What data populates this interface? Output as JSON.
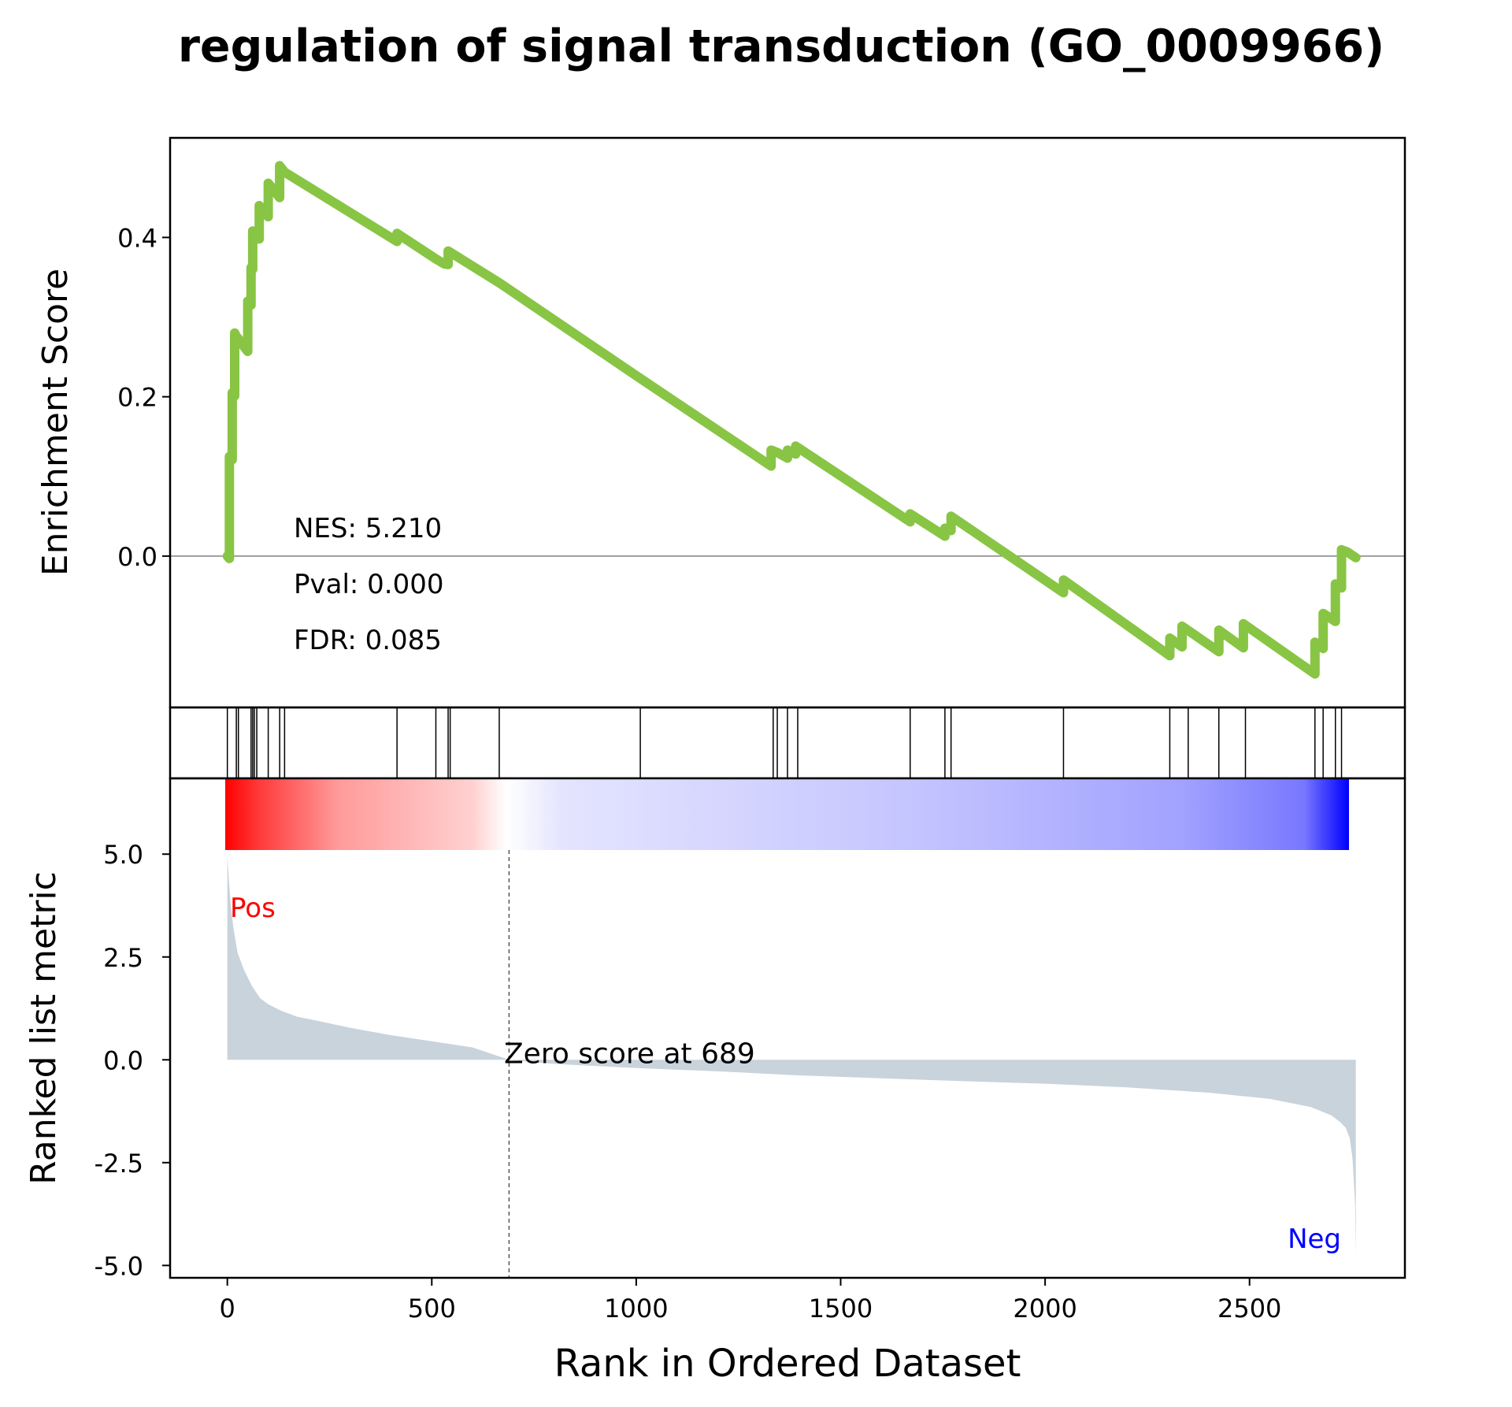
{
  "chart_data": {
    "type": "line",
    "title": "regulation of signal transduction (GO_0009966)",
    "xlabel": "Rank in Ordered Dataset",
    "xlim": [
      -140,
      2880
    ],
    "xticks": [
      0,
      500,
      1000,
      1500,
      2000,
      2500
    ],
    "xtick_labels": [
      "0",
      "500",
      "1000",
      "1500",
      "2000",
      "2500"
    ],
    "colors": {
      "es_line": "#88c544",
      "hits": "#000000",
      "metric_fill": "#c9d3db",
      "pos_label": "#ff0000",
      "neg_label": "#0000ff",
      "zero_line": "#808080"
    },
    "enrichment": {
      "ylabel": "Enrichment Score",
      "ylim": [
        -0.19,
        0.525
      ],
      "yticks": [
        0.0,
        0.2,
        0.4
      ],
      "ytick_labels": [
        "0.0",
        "0.2",
        "0.4"
      ],
      "stats": [
        "NES: 5.210",
        "Pval: 0.000",
        "FDR: 0.085"
      ],
      "x": [
        0,
        0,
        5,
        5,
        12,
        12,
        18,
        18,
        22,
        22,
        30,
        30,
        50,
        50,
        58,
        58,
        62,
        62,
        66,
        66,
        78,
        78,
        88,
        88,
        100,
        100,
        108,
        108,
        128,
        128,
        140,
        140,
        415,
        415,
        510,
        510,
        530,
        530,
        540,
        540,
        665,
        665,
        1010,
        1010,
        1330,
        1330,
        1345,
        1345,
        1370,
        1370,
        1390,
        1390,
        1670,
        1670,
        1755,
        1755,
        1770,
        1770,
        2045,
        2045,
        2305,
        2305,
        2335,
        2335,
        2425,
        2425,
        2485,
        2485,
        2660,
        2660,
        2680,
        2680,
        2710,
        2710,
        2725,
        2725,
        2740,
        2740,
        2760
      ],
      "y": [
        0.0,
        0.0,
        -0.003,
        0.125,
        0.121,
        0.205,
        0.201,
        0.28,
        0.276,
        0.276,
        0.271,
        0.27,
        0.257,
        0.32,
        0.315,
        0.362,
        0.36,
        0.408,
        0.405,
        0.405,
        0.398,
        0.44,
        0.433,
        0.433,
        0.426,
        0.468,
        0.463,
        0.463,
        0.45,
        0.49,
        0.482,
        0.482,
        0.395,
        0.405,
        0.373,
        0.373,
        0.367,
        0.367,
        0.366,
        0.383,
        0.343,
        0.343,
        0.223,
        0.223,
        0.113,
        0.133,
        0.13,
        0.13,
        0.123,
        0.133,
        0.128,
        0.138,
        0.043,
        0.053,
        0.025,
        0.035,
        0.032,
        0.05,
        -0.046,
        -0.03,
        -0.125,
        -0.103,
        -0.114,
        -0.088,
        -0.12,
        -0.093,
        -0.115,
        -0.085,
        -0.148,
        -0.108,
        -0.116,
        -0.072,
        -0.082,
        -0.035,
        -0.04,
        0.008,
        0.005,
        0.005,
        -0.002
      ]
    },
    "hits": [
      0,
      22,
      27,
      58,
      62,
      66,
      72,
      100,
      128,
      140,
      415,
      510,
      540,
      545,
      665,
      1010,
      1335,
      1345,
      1370,
      1395,
      1670,
      1755,
      1770,
      2045,
      2305,
      2350,
      2425,
      2490,
      2660,
      2680,
      2710,
      2725
    ],
    "ranked_metric": {
      "ylabel": "Ranked list metric",
      "ylim": [
        -5.3,
        5.1
      ],
      "yticks": [
        5.0,
        2.5,
        0.0,
        -2.5,
        -5.0
      ],
      "ytick_labels": [
        "5.0",
        "2.5",
        "0.0",
        "-2.5",
        "-5.0"
      ],
      "zero_cross": 689,
      "zero_label": "Zero score at 689",
      "pos_label": "Pos",
      "neg_label": "Neg",
      "x": [
        0,
        3,
        8,
        15,
        25,
        40,
        60,
        80,
        100,
        130,
        170,
        220,
        300,
        400,
        500,
        600,
        689,
        800,
        1000,
        1200,
        1400,
        1600,
        1800,
        2000,
        2200,
        2400,
        2550,
        2650,
        2700,
        2720,
        2735,
        2745,
        2752,
        2758,
        2760
      ],
      "y": [
        4.95,
        4.5,
        3.8,
        3.2,
        2.6,
        2.2,
        1.8,
        1.5,
        1.35,
        1.2,
        1.05,
        0.95,
        0.78,
        0.6,
        0.45,
        0.3,
        0.0,
        -0.1,
        -0.2,
        -0.28,
        -0.38,
        -0.45,
        -0.52,
        -0.58,
        -0.67,
        -0.8,
        -0.95,
        -1.15,
        -1.35,
        -1.5,
        -1.65,
        -1.9,
        -2.4,
        -3.5,
        -4.8
      ]
    }
  }
}
